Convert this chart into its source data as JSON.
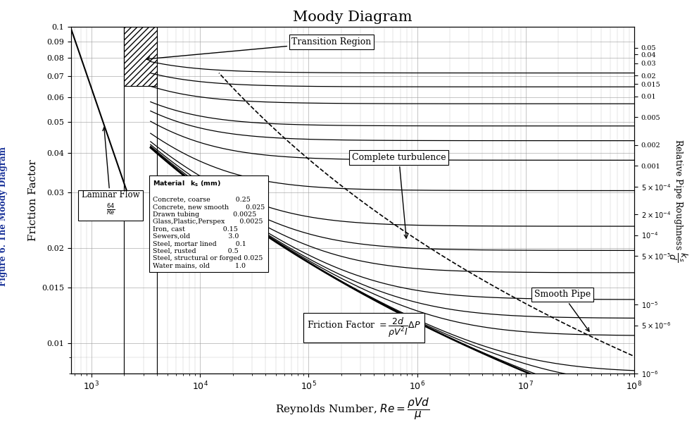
{
  "title": "Moody Diagram",
  "xlabel": "Reynolds Number, $Re = \\dfrac{\\rho V d}{\\mu}$",
  "ylabel": "Friction Factor",
  "ylabel_right": "Relative Pipe Roughness $\\dfrac{k_s}{d}$",
  "Re_min": 650,
  "Re_max": 100000000.0,
  "f_min": 0.008,
  "f_max": 0.1,
  "roughness_values": [
    0.05,
    0.04,
    0.03,
    0.02,
    0.015,
    0.01,
    0.005,
    0.002,
    0.001,
    0.0005,
    0.0002,
    0.0001,
    5e-05,
    1e-05,
    5e-06,
    1e-06
  ],
  "roughness_labels": [
    "0.05",
    "0.04",
    "0.03",
    "0.02",
    "0.015",
    "0.01",
    "0.005",
    "0.002",
    "0.001",
    "$5\\times10^{-4}$",
    "$2\\times10^{-4}$",
    "$10^{-4}$",
    "$5\\times10^{-5}$",
    "$10^{-5}$",
    "$5\\times10^{-6}$",
    "$10^{-6}$"
  ],
  "materials": [
    "Concrete, coarse",
    "Concrete, new smooth",
    "Drawn tubing",
    "Glass,Plastic,Perspex",
    "Iron, cast",
    "Sewers,old",
    "Steel, mortar lined",
    "Steel, rusted",
    "Steel, structural or forged",
    "Water mains, old"
  ],
  "ks_values": [
    "0.25",
    "0.025",
    "0.0025",
    "0.0025",
    "0.15",
    "3.0",
    "0.1",
    "0.5",
    "0.025",
    "1.0"
  ],
  "bg_color": "#ffffff",
  "grid_color": "#999999",
  "figure_label": "Figure 6. The Moody Diagram",
  "yticks": [
    0.01,
    0.015,
    0.02,
    0.03,
    0.04,
    0.05,
    0.06,
    0.07,
    0.08,
    0.09,
    0.1
  ],
  "xticks": [
    1000.0,
    10000.0,
    100000.0,
    1000000.0,
    10000000.0,
    100000000.0
  ]
}
